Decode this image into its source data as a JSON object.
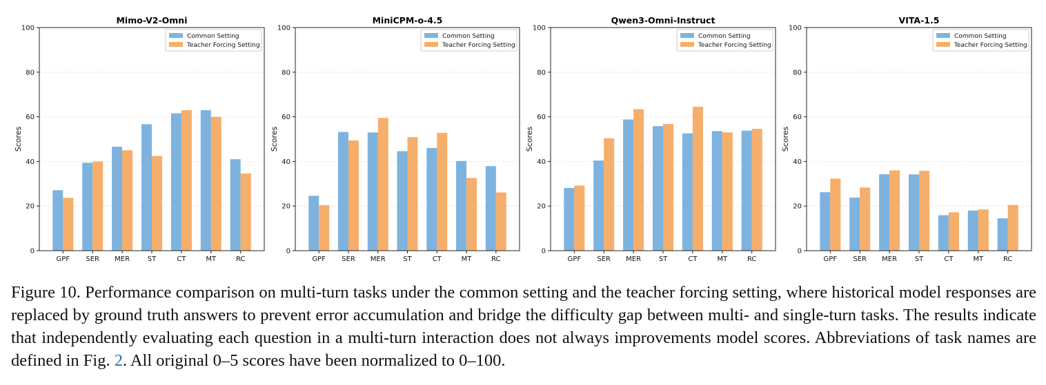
{
  "chart_data": [
    {
      "type": "bar",
      "title": "Mimo-V2-Omni",
      "ylabel": "Scores",
      "ylim": [
        0,
        100
      ],
      "yticks": [
        0,
        20,
        40,
        60,
        80,
        100
      ],
      "grid": "horizontal dashed",
      "legend": "top-right",
      "categories": [
        "GPF",
        "SER",
        "MER",
        "ST",
        "CT",
        "MT",
        "RC"
      ],
      "series": [
        {
          "name": "Common Setting",
          "values": [
            27.1,
            39.4,
            46.6,
            56.7,
            61.6,
            63.0,
            41.0
          ]
        },
        {
          "name": "Teacher Forcing Setting",
          "values": [
            23.7,
            40.0,
            45.0,
            42.4,
            63.0,
            60.0,
            34.6
          ]
        }
      ]
    },
    {
      "type": "bar",
      "title": "MiniCPM-o-4.5",
      "ylabel": "Scores",
      "ylim": [
        0,
        100
      ],
      "yticks": [
        0,
        20,
        40,
        60,
        80,
        100
      ],
      "grid": "horizontal dashed",
      "legend": "top-right",
      "categories": [
        "GPF",
        "SER",
        "MER",
        "ST",
        "CT",
        "MT",
        "RC"
      ],
      "series": [
        {
          "name": "Common Setting",
          "values": [
            24.6,
            53.2,
            53.0,
            44.6,
            46.0,
            40.2,
            37.9
          ]
        },
        {
          "name": "Teacher Forcing Setting",
          "values": [
            20.4,
            49.4,
            59.5,
            50.9,
            52.8,
            32.6,
            26.1
          ]
        }
      ]
    },
    {
      "type": "bar",
      "title": "Qwen3-Omni-Instruct",
      "ylabel": "Scores",
      "ylim": [
        0,
        100
      ],
      "yticks": [
        0,
        20,
        40,
        60,
        80,
        100
      ],
      "grid": "horizontal dashed",
      "legend": "top-right",
      "categories": [
        "GPF",
        "SER",
        "MER",
        "ST",
        "CT",
        "MT",
        "RC"
      ],
      "series": [
        {
          "name": "Common Setting",
          "values": [
            28.1,
            40.4,
            58.8,
            55.8,
            52.6,
            53.6,
            53.8
          ]
        },
        {
          "name": "Teacher Forcing Setting",
          "values": [
            29.2,
            50.4,
            63.4,
            56.8,
            64.5,
            53.0,
            54.6
          ]
        }
      ]
    },
    {
      "type": "bar",
      "title": "VITA-1.5",
      "ylabel": "Scores",
      "ylim": [
        0,
        100
      ],
      "yticks": [
        0,
        20,
        40,
        60,
        80,
        100
      ],
      "grid": "horizontal dashed",
      "legend": "top-right",
      "categories": [
        "GPF",
        "SER",
        "MER",
        "ST",
        "CT",
        "MT",
        "RC"
      ],
      "series": [
        {
          "name": "Common Setting",
          "values": [
            26.2,
            23.8,
            34.3,
            34.2,
            15.9,
            18.0,
            14.5
          ]
        },
        {
          "name": "Teacher Forcing Setting",
          "values": [
            32.3,
            28.3,
            36.0,
            35.8,
            17.2,
            18.5,
            20.5
          ]
        }
      ]
    }
  ],
  "colors": {
    "common": "#7db3de",
    "teacher": "#f6ae6b",
    "grid": "#dddddd",
    "axis": "#222222",
    "link": "#2a6ebb"
  },
  "caption": {
    "part1": "Figure 10. Performance comparison on multi-turn tasks under the common setting and the teacher forcing setting, where historical model responses are replaced by ground truth answers to prevent error accumulation and bridge the difficulty gap between multi- and single-turn tasks. The results indicate that independently evaluating each question in a multi-turn interaction does not always improvements model scores. Abbreviations of task names are defined in Fig. ",
    "ref": "2",
    "part2": ". All original 0–5 scores have been normalized to 0–100."
  }
}
